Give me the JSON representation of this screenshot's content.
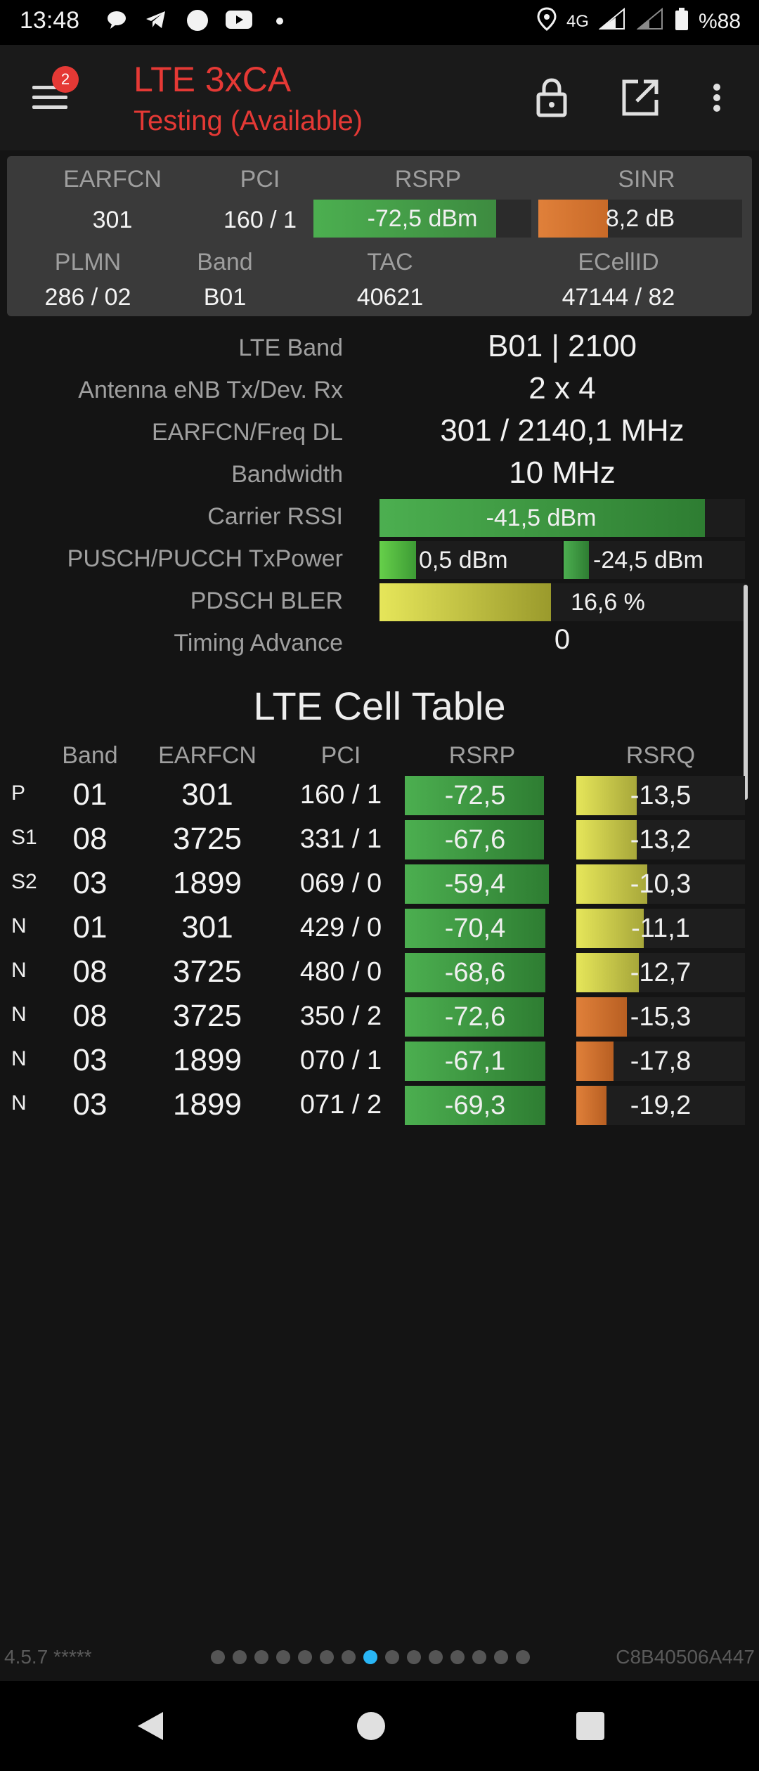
{
  "status_bar": {
    "time": "13:48",
    "left_icons": [
      "chat-icon",
      "telegram-icon",
      "circle-icon",
      "youtube-icon",
      "dot-icon"
    ],
    "network": "4G",
    "battery": "%88"
  },
  "app_bar": {
    "title": "LTE 3xCA",
    "subtitle": "Testing (Available)",
    "badge_count": "2",
    "colors": {
      "title": "#e53935"
    }
  },
  "summary": {
    "headers_top": [
      "EARFCN",
      "PCI",
      "RSRP",
      "SINR"
    ],
    "earfcn": "301",
    "pci": "160 / 1",
    "rsrp": {
      "label": "-72,5 dBm",
      "level": 0.84,
      "color": "#4caf50"
    },
    "sinr": {
      "label": "8,2 dB",
      "level": 0.34,
      "color": "#e0803a"
    },
    "headers_bottom": [
      "PLMN",
      "Band",
      "TAC",
      "ECellID"
    ],
    "plmn": "286 / 02",
    "band": "B01",
    "tac": "40621",
    "ecellid": "47144 / 82"
  },
  "details": {
    "lte_band": {
      "label": "LTE Band",
      "value": "B01 | 2100"
    },
    "antenna": {
      "label": "Antenna eNB Tx/Dev. Rx",
      "value": "2 x 4"
    },
    "earfcn_freq": {
      "label": "EARFCN/Freq DL",
      "value": "301 / 2140,1 MHz"
    },
    "bandwidth": {
      "label": "Bandwidth",
      "value": "10 MHz"
    },
    "carrier_rssi": {
      "label": "Carrier RSSI",
      "value": "-41,5 dBm",
      "level": 0.89
    },
    "txpower": {
      "label": "PUSCH/PUCCH TxPower",
      "pusch": "0,5 dBm",
      "pusch_level": 0.2,
      "pucch": "-24,5 dBm",
      "pucch_level": 0.14
    },
    "bler": {
      "label": "PDSCH BLER",
      "value": "16,6 %",
      "level": 0.47
    },
    "timing_advance": {
      "label": "Timing Advance",
      "value": "0"
    }
  },
  "cell_table": {
    "title": "LTE Cell Table",
    "headers": [
      "Band",
      "EARFCN",
      "PCI",
      "RSRP",
      "RSRQ"
    ],
    "rows": [
      {
        "type": "P",
        "band": "01",
        "earfcn": "301",
        "pci": "160 / 1",
        "rsrp": "-72,5",
        "rsrp_level": 0.9,
        "rsrq": "-13,5",
        "rsrq_level": 0.36,
        "rsrq_color": "yellow"
      },
      {
        "type": "S1",
        "band": "08",
        "earfcn": "3725",
        "pci": "331 / 1",
        "rsrp": "-67,6",
        "rsrp_level": 0.9,
        "rsrq": "-13,2",
        "rsrq_level": 0.36,
        "rsrq_color": "yellow"
      },
      {
        "type": "S2",
        "band": "03",
        "earfcn": "1899",
        "pci": "069 / 0",
        "rsrp": "-59,4",
        "rsrp_level": 0.93,
        "rsrq": "-10,3",
        "rsrq_level": 0.42,
        "rsrq_color": "yellow"
      },
      {
        "type": "N",
        "band": "01",
        "earfcn": "301",
        "pci": "429 / 0",
        "rsrp": "-70,4",
        "rsrp_level": 0.91,
        "rsrq": "-11,1",
        "rsrq_level": 0.4,
        "rsrq_color": "yellow"
      },
      {
        "type": "N",
        "band": "08",
        "earfcn": "3725",
        "pci": "480 / 0",
        "rsrp": "-68,6",
        "rsrp_level": 0.91,
        "rsrq": "-12,7",
        "rsrq_level": 0.37,
        "rsrq_color": "yellow"
      },
      {
        "type": "N",
        "band": "08",
        "earfcn": "3725",
        "pci": "350 / 2",
        "rsrp": "-72,6",
        "rsrp_level": 0.9,
        "rsrq": "-15,3",
        "rsrq_level": 0.3,
        "rsrq_color": "orange"
      },
      {
        "type": "N",
        "band": "03",
        "earfcn": "1899",
        "pci": "070 / 1",
        "rsrp": "-67,1",
        "rsrp_level": 0.91,
        "rsrq": "-17,8",
        "rsrq_level": 0.22,
        "rsrq_color": "orange"
      },
      {
        "type": "N",
        "band": "03",
        "earfcn": "1899",
        "pci": "071 / 2",
        "rsrp": "-69,3",
        "rsrp_level": 0.91,
        "rsrq": "-19,2",
        "rsrq_level": 0.18,
        "rsrq_color": "orange"
      }
    ]
  },
  "footer": {
    "version": "4.5.7 *****",
    "device_id": "C8B40506A447",
    "page_count": 15,
    "active_page": 7
  }
}
